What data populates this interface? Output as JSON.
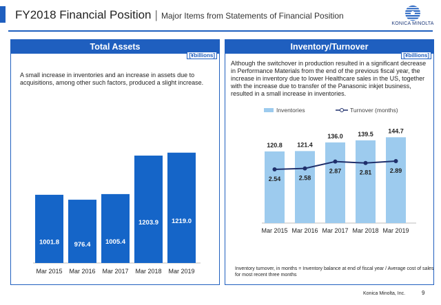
{
  "header": {
    "title": "FY2018 Financial Position",
    "separator": "|",
    "subtitle": "Major Items from Statements of Financial Position",
    "logo_text": "KONICA MINOLTA",
    "accent_color": "#1f5fbf"
  },
  "total_assets": {
    "title": "Total Assets",
    "unit": "[¥billions]",
    "description": "A small increase in inventories and an increase in assets due to acquisitions, among other such factors, produced a slight increase."
  },
  "inventory": {
    "title": "Inventory/Turnover",
    "unit": "[¥billions]",
    "description": "Although the switchover in production resulted in a significant decrease in Performance Materials from the end of the previous fiscal year, the increase in inventory due to lower Healthcare sales in the US, together with the increase due to transfer of the Panasonic inkjet business, resulted in a small increase in inventories.",
    "footnote": "Inventory turnover, in months = Inventory balance at end of fiscal year / Average cost of sales for most recent three months"
  },
  "chart_data": [
    {
      "type": "bar",
      "categories": [
        "Mar 2015",
        "Mar 2016",
        "Mar 2017",
        "Mar 2018",
        "Mar 2019"
      ],
      "values": [
        1001.8,
        976.4,
        1005.4,
        1203.9,
        1219.0
      ],
      "value_labels": [
        "1001.8",
        "976.4",
        "1005.4",
        "1203.9",
        "1219.0"
      ],
      "bar_color": "#1565c8",
      "ylim": [
        650,
        1250
      ]
    },
    {
      "type": "bar",
      "categories": [
        "Mar 2015",
        "Mar 2016",
        "Mar 2017",
        "Mar 2018",
        "Mar 2019"
      ],
      "series": [
        {
          "name": "Inventories",
          "type": "bar",
          "values": [
            120.8,
            121.4,
            136.0,
            139.5,
            144.7
          ],
          "labels": [
            "120.8",
            "121.4",
            "136.0",
            "139.5",
            "144.7"
          ],
          "color": "#9dcbee"
        },
        {
          "name": "Turnover (months)",
          "type": "line",
          "values": [
            2.54,
            2.58,
            2.87,
            2.81,
            2.89
          ],
          "labels": [
            "2.54",
            "2.58",
            "2.87",
            "2.81",
            "2.89"
          ],
          "color": "#1f2f6b"
        }
      ],
      "legend_position": "top",
      "ylim_bars": [
        0,
        160
      ],
      "ylim_line": [
        1.5,
        3.5
      ]
    }
  ],
  "footer": {
    "company": "Konica Minolta, Inc.",
    "page": "9"
  }
}
